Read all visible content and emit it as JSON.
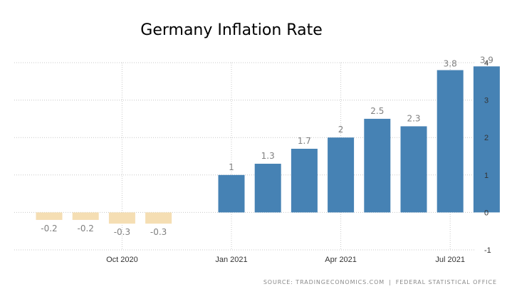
{
  "source": {
    "label": "SOURCE: TRADINGECONOMICS.COM",
    "separator": "|",
    "provider": "FEDERAL STATISTICAL OFFICE"
  },
  "colors": {
    "positive": "#4682b4",
    "negative": "#f5deb3",
    "grid": "#c8c8c8",
    "axis_text": "#333333",
    "value_text": "#808080",
    "value_text_inside": "#5a7fa4"
  },
  "chart_data": {
    "type": "bar",
    "title": "Germany Inflation Rate",
    "xlabel": "",
    "ylabel": "",
    "categories": [
      "Aug 2020",
      "Sep 2020",
      "Oct 2020",
      "Nov 2020",
      "Dec 2020",
      "Jan 2021",
      "Feb 2021",
      "Mar 2021",
      "Apr 2021",
      "May 2021",
      "Jun 2021",
      "Jul 2021",
      "Aug 2021"
    ],
    "values": [
      -0.2,
      -0.2,
      -0.3,
      -0.3,
      null,
      1,
      1.3,
      1.7,
      2,
      2.5,
      2.3,
      3.8,
      3.9
    ],
    "value_labels": [
      "-0.2",
      "-0.2",
      "-0.3",
      "-0.3",
      "",
      "1",
      "1.3",
      "1.7",
      "2",
      "2.5",
      "2.3",
      "3.8",
      "3.9"
    ],
    "x_tick_labels": [
      {
        "category": "Oct 2020",
        "label": "Oct 2020"
      },
      {
        "category": "Jan 2021",
        "label": "Jan 2021"
      },
      {
        "category": "Apr 2021",
        "label": "Apr 2021"
      },
      {
        "category": "Jul 2021",
        "label": "Jul 2021"
      }
    ],
    "y_ticks": [
      4,
      3,
      2,
      1,
      0,
      -1
    ],
    "y_tick_labels": [
      "4",
      "3",
      "2",
      "1",
      "0",
      "-1"
    ],
    "ylim": [
      -1,
      4
    ],
    "grid": true,
    "y_axis_side": "right",
    "legend": "none"
  }
}
